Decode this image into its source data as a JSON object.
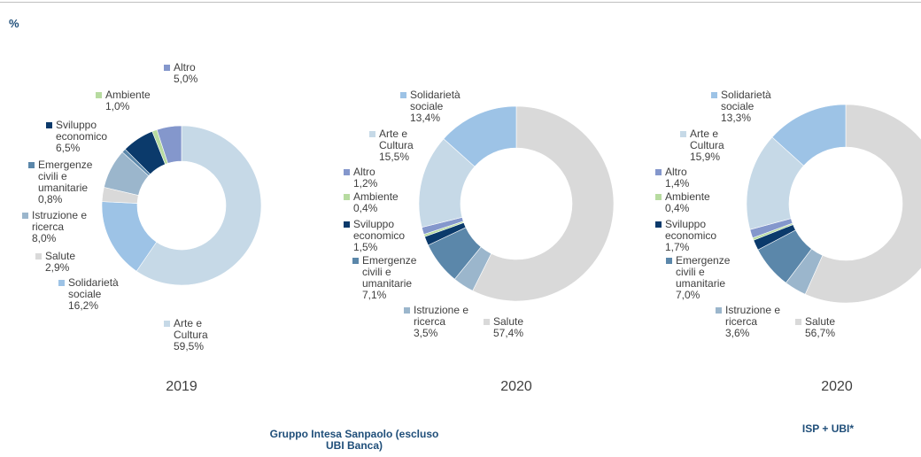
{
  "unit": "%",
  "captions": [
    "Gruppo Intesa Sanpaolo (escluso UBI Banca)",
    "ISP + UBI*"
  ],
  "chart_data": [
    {
      "type": "pie",
      "title": "2019",
      "categories": [
        "Arte e Cultura",
        "Solidarietà sociale",
        "Salute",
        "Istruzione e ricerca",
        "Emergenze civili e umanitarie",
        "Sviluppo economico",
        "Ambiente",
        "Altro"
      ],
      "values": [
        59.5,
        16.2,
        2.9,
        8.0,
        0.8,
        6.5,
        1.0,
        5.0
      ],
      "value_labels": [
        "59,5%",
        "16,2%",
        "2,9%",
        "8,0%",
        "0,8%",
        "6,5%",
        "1,0%",
        "5,0%"
      ],
      "colors": [
        "#c6d9e7",
        "#9dc3e6",
        "#d9d9d9",
        "#9bb6cc",
        "#5b87aa",
        "#0b3a6b",
        "#b7dba0",
        "#8497cc"
      ]
    },
    {
      "type": "pie",
      "title": "2020",
      "categories": [
        "Salute",
        "Istruzione e ricerca",
        "Emergenze civili e umanitarie",
        "Sviluppo economico",
        "Ambiente",
        "Altro",
        "Arte e Cultura",
        "Solidarietà sociale"
      ],
      "values": [
        57.4,
        3.5,
        7.1,
        1.5,
        0.4,
        1.2,
        15.5,
        13.4
      ],
      "value_labels": [
        "57,4%",
        "3,5%",
        "7,1%",
        "1,5%",
        "0,4%",
        "1,2%",
        "15,5%",
        "13,4%"
      ],
      "colors": [
        "#d9d9d9",
        "#9bb6cc",
        "#5b87aa",
        "#0b3a6b",
        "#b7dba0",
        "#8497cc",
        "#c6d9e7",
        "#9dc3e6"
      ]
    },
    {
      "type": "pie",
      "title": "2020",
      "categories": [
        "Salute",
        "Istruzione e ricerca",
        "Emergenze civili e umanitarie",
        "Sviluppo economico",
        "Ambiente",
        "Altro",
        "Arte e Cultura",
        "Solidarietà sociale"
      ],
      "values": [
        56.7,
        3.6,
        7.0,
        1.7,
        0.4,
        1.4,
        15.9,
        13.3
      ],
      "value_labels": [
        "56,7%",
        "3,6%",
        "7,0%",
        "1,7%",
        "0,4%",
        "1,4%",
        "15,9%",
        "13,3%"
      ],
      "colors": [
        "#d9d9d9",
        "#9bb6cc",
        "#5b87aa",
        "#0b3a6b",
        "#b7dba0",
        "#8497cc",
        "#c6d9e7",
        "#9dc3e6"
      ]
    }
  ]
}
